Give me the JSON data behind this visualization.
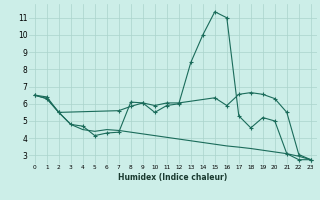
{
  "xlabel": "Humidex (Indice chaleur)",
  "xlim": [
    -0.5,
    23.5
  ],
  "ylim": [
    2.5,
    11.8
  ],
  "yticks": [
    3,
    4,
    5,
    6,
    7,
    8,
    9,
    10,
    11
  ],
  "xticks": [
    0,
    1,
    2,
    3,
    4,
    5,
    6,
    7,
    8,
    9,
    10,
    11,
    12,
    13,
    14,
    15,
    16,
    17,
    18,
    19,
    20,
    21,
    22,
    23
  ],
  "bg_color": "#cceee8",
  "grid_color": "#aad4cc",
  "line_color": "#1a6b5a",
  "line1_x": [
    0,
    1,
    2,
    3,
    4,
    5,
    6,
    7,
    8,
    9,
    10,
    11,
    12,
    13,
    14,
    15,
    16,
    17,
    18,
    19,
    20,
    21,
    22,
    23
  ],
  "line1_y": [
    6.5,
    6.4,
    5.5,
    4.8,
    4.7,
    4.15,
    4.3,
    4.35,
    6.1,
    6.05,
    5.5,
    5.9,
    6.0,
    8.4,
    10.0,
    11.35,
    11.0,
    5.3,
    4.6,
    5.2,
    5.0,
    3.1,
    2.75,
    2.75
  ],
  "line2_x": [
    0,
    1,
    2,
    3,
    4,
    5,
    6,
    7,
    8,
    9,
    10,
    11,
    12,
    13,
    14,
    15,
    16,
    17,
    18,
    19,
    20,
    21,
    22,
    23
  ],
  "line2_y": [
    6.5,
    6.3,
    5.5,
    4.8,
    4.5,
    4.4,
    4.5,
    4.45,
    4.35,
    4.25,
    4.15,
    4.05,
    3.95,
    3.85,
    3.75,
    3.65,
    3.55,
    3.48,
    3.4,
    3.3,
    3.2,
    3.1,
    2.95,
    2.75
  ],
  "line3_x": [
    0,
    1,
    2,
    7,
    8,
    9,
    10,
    11,
    12,
    15,
    16,
    17,
    18,
    19,
    20,
    21,
    22,
    23
  ],
  "line3_y": [
    6.5,
    6.3,
    5.5,
    5.6,
    5.85,
    6.05,
    5.9,
    6.05,
    6.05,
    6.35,
    5.9,
    6.55,
    6.65,
    6.55,
    6.3,
    5.5,
    3.05,
    2.75
  ]
}
